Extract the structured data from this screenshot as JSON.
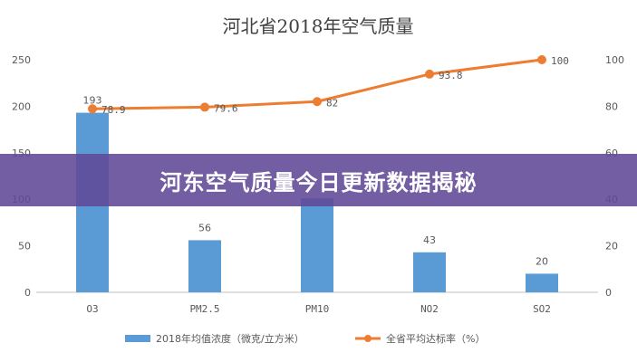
{
  "chart_data": {
    "type": "bar",
    "title": "河北省2018年空气质量",
    "categories": [
      "O3",
      "PM2.5",
      "PM10",
      "NO2",
      "SO2"
    ],
    "series": [
      {
        "name": "2018年均值浓度（微克/立方米）",
        "type": "bar",
        "axis": "left",
        "values": [
          193,
          56,
          101,
          43,
          20
        ],
        "labels": [
          "193",
          "56",
          "",
          "43",
          "20"
        ],
        "color": "#5b9bd5"
      },
      {
        "name": "全省平均达标率（%）",
        "type": "line",
        "axis": "right",
        "values": [
          78.9,
          79.6,
          82,
          93.8,
          100
        ],
        "labels": [
          "78.9",
          "79.6",
          "82",
          "93.8",
          "100"
        ],
        "color": "#ed7d31"
      }
    ],
    "y_left": {
      "ylim": [
        0,
        250
      ],
      "ticks": [
        "0",
        "50",
        "100",
        "150",
        "200",
        "250"
      ]
    },
    "y_right": {
      "ylim": [
        0,
        100
      ],
      "ticks": [
        "0",
        "20",
        "40",
        "60",
        "80",
        "100"
      ]
    },
    "grid": false,
    "legend_position": "bottom"
  },
  "banner": {
    "text": "河东空气质量今日更新数据揭秘"
  },
  "colors": {
    "banner": "#604896",
    "axis": "#bfbfbf",
    "text": "#595959"
  }
}
